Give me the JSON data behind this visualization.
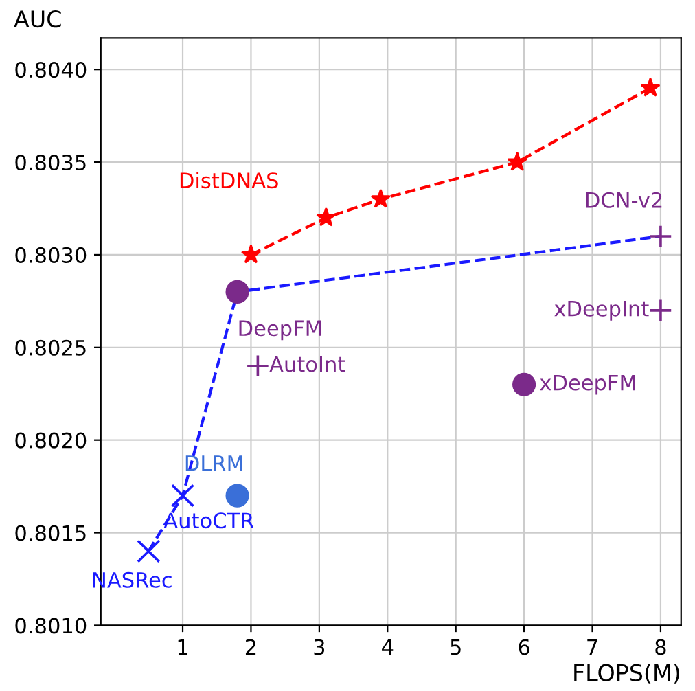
{
  "chart_data": {
    "type": "scatter",
    "xlabel": "FLOPS(M)",
    "ylabel": "AUC",
    "xlim": [
      -0.2,
      8.3
    ],
    "ylim": [
      0.801,
      0.80417
    ],
    "xticks": [
      1,
      2,
      3,
      4,
      5,
      6,
      7,
      8
    ],
    "yticks": [
      {
        "value": 0.801,
        "label": "0.8010"
      },
      {
        "value": 0.8015,
        "label": "0.8015"
      },
      {
        "value": 0.802,
        "label": "0.8020"
      },
      {
        "value": 0.8025,
        "label": "0.8025"
      },
      {
        "value": 0.803,
        "label": "0.8030"
      },
      {
        "value": 0.8035,
        "label": "0.8035"
      },
      {
        "value": 0.804,
        "label": "0.8040"
      }
    ],
    "grid": true,
    "legend": false,
    "series": [
      {
        "name": "DistDNAS",
        "type": "line",
        "color": "#ff0000",
        "marker": "star",
        "line_style": "dashed",
        "x": [
          2.0,
          3.1,
          3.9,
          5.9,
          7.85
        ],
        "values": [
          0.803,
          0.8032,
          0.8033,
          0.8035,
          0.8039
        ]
      },
      {
        "type": "line",
        "color": "#1a1aff",
        "marker": "none",
        "line_style": "dashed",
        "x": [
          0.5,
          1.0,
          1.8,
          8.0
        ],
        "values": [
          0.8014,
          0.8017,
          0.8028,
          0.8031
        ]
      },
      {
        "name": "NASRec",
        "color": "#1a1aff",
        "marker": "cross",
        "x": [
          0.5
        ],
        "values": [
          0.8014
        ]
      },
      {
        "name": "AutoCTR",
        "color": "#1a1aff",
        "marker": "cross",
        "x": [
          1.0
        ],
        "values": [
          0.8017
        ]
      },
      {
        "name": "DeepFM",
        "color": "#7b2a8a",
        "marker": "circle",
        "x": [
          1.8
        ],
        "values": [
          0.8028
        ]
      },
      {
        "name": "DCN-v2",
        "color": "#7b2a8a",
        "marker": "plus",
        "x": [
          8.0
        ],
        "values": [
          0.8031
        ]
      },
      {
        "name": "AutoInt",
        "color": "#7b2a8a",
        "marker": "plus",
        "x": [
          2.1
        ],
        "values": [
          0.8024
        ]
      },
      {
        "name": "xDeepInt",
        "color": "#7b2a8a",
        "marker": "plus",
        "x": [
          8.0
        ],
        "values": [
          0.8027
        ]
      },
      {
        "name": "xDeepFM",
        "color": "#7b2a8a",
        "marker": "circle",
        "x": [
          6.0
        ],
        "values": [
          0.8023
        ]
      },
      {
        "name": "DLRM",
        "color": "#3a6fd8",
        "marker": "circle",
        "x": [
          1.8
        ],
        "values": [
          0.8017
        ]
      }
    ]
  }
}
